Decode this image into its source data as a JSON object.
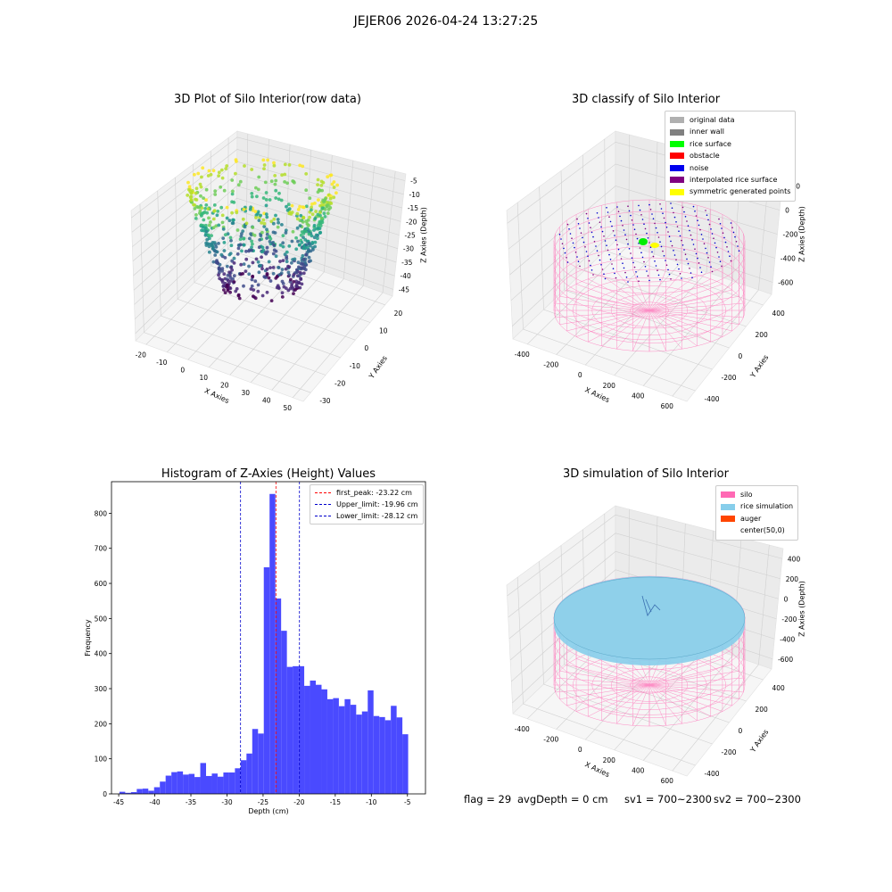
{
  "figure": {
    "suptitle": "JEJER06 2026-04-24 13:27:25"
  },
  "chart_data": [
    {
      "type": "scatter",
      "title": "3D Plot of Silo Interior(row data)",
      "xlabel": "X Axies",
      "ylabel": "Y Axies",
      "zlabel": "Z Axies (Depth)",
      "x_ticks": [
        "-20",
        "-10",
        "0",
        "10",
        "20",
        "30",
        "40",
        "50"
      ],
      "y_ticks": [
        "-30",
        "-20",
        "-10",
        "0",
        "10",
        "20"
      ],
      "z_ticks": [
        "-5",
        "-10",
        "-15",
        "-20",
        "-25",
        "-30",
        "-35",
        "-40",
        "-45"
      ],
      "xlim": [
        -25,
        50
      ],
      "ylim": [
        -35,
        25
      ],
      "zlim": [
        -47,
        -3
      ],
      "colormap": "viridis"
    },
    {
      "type": "scatter",
      "title": "3D classify of Silo Interior",
      "xlabel": "X Axies",
      "ylabel": "Y Axies",
      "zlabel": "Z Axies (Depth)",
      "x_ticks": [
        "-400",
        "-200",
        "0",
        "200",
        "400",
        "600"
      ],
      "y_ticks": [
        "-400",
        "-200",
        "0",
        "200",
        "400"
      ],
      "z_ticks": [
        "200",
        "0",
        "-200",
        "-400",
        "-600"
      ],
      "legend": [
        {
          "label": "original data",
          "color": "#b0b0b0"
        },
        {
          "label": "inner wall",
          "color": "#808080"
        },
        {
          "label": "rice surface",
          "color": "#00ff00"
        },
        {
          "label": "obstacle",
          "color": "#ff0000"
        },
        {
          "label": "noise",
          "color": "#0000ff"
        },
        {
          "label": "interpolated rice surface",
          "color": "#800080"
        },
        {
          "label": "symmetric generated points",
          "color": "#ffff00"
        }
      ]
    },
    {
      "type": "bar",
      "title": "Histogram of Z-Axies (Height) Values",
      "xlabel": "Depth (cm)",
      "ylabel": "Frequency",
      "xlim": [
        -46,
        -2.5
      ],
      "ylim": [
        0,
        890
      ],
      "x_ticks": [
        -45,
        -40,
        -35,
        -30,
        -25,
        -20,
        -15,
        -10,
        -5
      ],
      "y_ticks": [
        0,
        100,
        200,
        300,
        400,
        500,
        600,
        700,
        800
      ],
      "bin_start": -44.9,
      "bin_width": 0.8,
      "values": [
        6,
        3,
        5,
        14,
        15,
        9,
        19,
        35,
        52,
        62,
        64,
        55,
        57,
        48,
        88,
        51,
        58,
        49,
        61,
        61,
        73,
        96,
        115,
        185,
        172,
        646,
        855,
        557,
        465,
        362,
        364,
        364,
        308,
        323,
        311,
        298,
        270,
        273,
        250,
        270,
        254,
        226,
        235,
        295,
        222,
        219,
        210,
        251,
        218,
        170
      ],
      "bar_color": "#4a4aff",
      "vlines": [
        {
          "label": "first_peak: -23.22 cm",
          "x": -23.22,
          "color": "#ff0000"
        },
        {
          "label": "Upper_limit: -19.96 cm",
          "x": -19.96,
          "color": "#0000cc"
        },
        {
          "label": "Lower_limit: -28.12 cm",
          "x": -28.12,
          "color": "#0000cc"
        }
      ]
    },
    {
      "type": "scatter",
      "title": "3D simulation of Silo Interior",
      "xlabel": "X Axies",
      "ylabel": "Y Axies",
      "zlabel": "Z Axies (Depth)",
      "x_ticks": [
        "-400",
        "-200",
        "0",
        "200",
        "400",
        "600"
      ],
      "y_ticks": [
        "-400",
        "-200",
        "0",
        "200",
        "400"
      ],
      "z_ticks": [
        "400",
        "200",
        "0",
        "-200",
        "-400",
        "-600"
      ],
      "legend": [
        {
          "label": "silo",
          "color": "#ff69b4"
        },
        {
          "label": "rice simulation",
          "color": "#87ceeb"
        },
        {
          "label": "auger",
          "color": "#ff4500"
        },
        {
          "label": "center(50,0)",
          "color": "#ffffff"
        }
      ]
    }
  ],
  "status": {
    "flag": "flag = 29",
    "avg_depth": "avgDepth = 0 cm",
    "sv1": "sv1 = 700~2300",
    "sv2": "sv2 = 700~2300"
  }
}
